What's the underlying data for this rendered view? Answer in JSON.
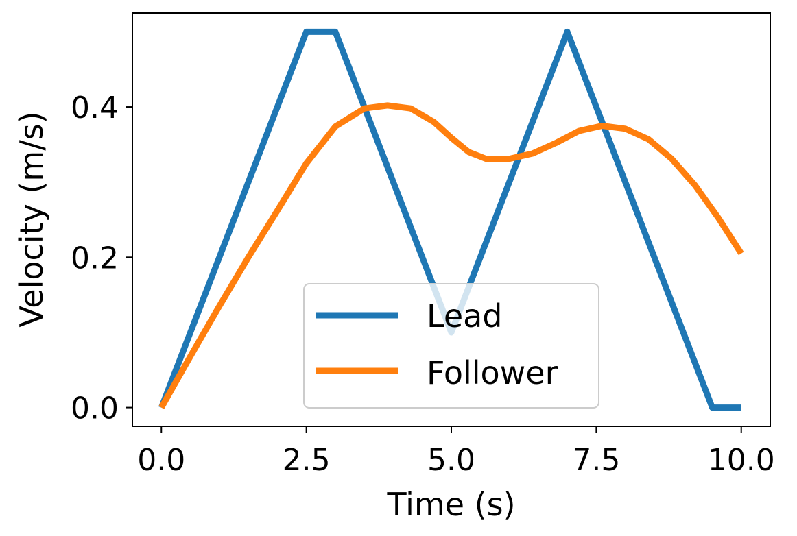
{
  "chart_data": {
    "type": "line",
    "title": "",
    "xlabel": "Time (s)",
    "ylabel": "Velocity (m/s)",
    "xlim": [
      -0.5,
      10.5
    ],
    "ylim": [
      -0.025,
      0.525
    ],
    "xticks": [
      0.0,
      2.5,
      5.0,
      7.5,
      10.0
    ],
    "xtick_labels": [
      "0.0",
      "2.5",
      "5.0",
      "7.5",
      "10.0"
    ],
    "yticks": [
      0.0,
      0.2,
      0.4
    ],
    "ytick_labels": [
      "0.0",
      "0.2",
      "0.4"
    ],
    "grid": false,
    "legend": "lower center",
    "series": [
      {
        "name": "Lead",
        "color": "#1f77b4",
        "x": [
          0.0,
          2.5,
          3.0,
          5.0,
          7.0,
          9.5,
          10.0
        ],
        "y": [
          0.0,
          0.5,
          0.5,
          0.1,
          0.5,
          0.0,
          0.0
        ]
      },
      {
        "name": "Follower",
        "color": "#ff7f0e",
        "x": [
          0.0,
          0.5,
          1.0,
          1.5,
          2.0,
          2.5,
          3.0,
          3.5,
          3.9,
          4.3,
          4.7,
          5.0,
          5.3,
          5.6,
          6.0,
          6.4,
          6.8,
          7.2,
          7.6,
          8.0,
          8.4,
          8.8,
          9.2,
          9.6,
          10.0
        ],
        "y": [
          0.0,
          0.068,
          0.135,
          0.2,
          0.262,
          0.325,
          0.374,
          0.398,
          0.402,
          0.398,
          0.38,
          0.359,
          0.34,
          0.331,
          0.331,
          0.338,
          0.352,
          0.368,
          0.375,
          0.371,
          0.357,
          0.331,
          0.296,
          0.253,
          0.205
        ]
      }
    ]
  }
}
